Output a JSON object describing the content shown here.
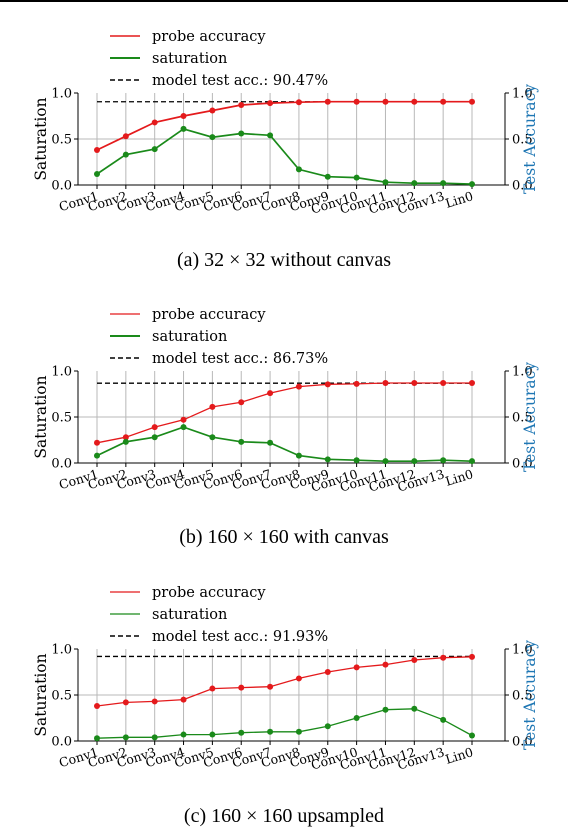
{
  "chart_data": [
    {
      "type": "line",
      "caption": "(a) 32 × 32 without canvas",
      "categories": [
        "Conv1",
        "Conv2",
        "Conv3",
        "Conv4",
        "Conv5",
        "Conv6",
        "Conv7",
        "Conv8",
        "Conv9",
        "Conv10",
        "Conv11",
        "Conv12",
        "Conv13",
        "Lin0"
      ],
      "series": [
        {
          "name": "probe accuracy",
          "color": "#e41a1c",
          "values": [
            0.38,
            0.53,
            0.68,
            0.75,
            0.81,
            0.87,
            0.89,
            0.9,
            0.905,
            0.905,
            0.905,
            0.905,
            0.905,
            0.905
          ]
        },
        {
          "name": "saturation",
          "color": "#1a8a1a",
          "values": [
            0.12,
            0.33,
            0.39,
            0.61,
            0.52,
            0.56,
            0.54,
            0.17,
            0.09,
            0.08,
            0.03,
            0.02,
            0.02,
            0.01
          ]
        }
      ],
      "legend": {
        "probe": "probe accuracy",
        "saturation": "saturation",
        "model": "model test acc.: 90.47%"
      },
      "model_acc": 0.9047,
      "ylabel": "Saturation",
      "y2label": "Test Accuracy",
      "yticks": [
        "0.0",
        "0.5",
        "1.0"
      ],
      "ylim": [
        0,
        1
      ],
      "grid": true,
      "legend_position": "top"
    },
    {
      "type": "line",
      "caption": "(b) 160 × 160 with canvas",
      "categories": [
        "Conv1",
        "Conv2",
        "Conv3",
        "Conv4",
        "Conv5",
        "Conv6",
        "Conv7",
        "Conv8",
        "Conv9",
        "Conv10",
        "Conv11",
        "Conv12",
        "Conv13",
        "Lin0"
      ],
      "series": [
        {
          "name": "probe accuracy",
          "color": "#e41a1c",
          "values": [
            0.22,
            0.28,
            0.39,
            0.47,
            0.61,
            0.66,
            0.76,
            0.83,
            0.855,
            0.86,
            0.87,
            0.87,
            0.87,
            0.87
          ]
        },
        {
          "name": "saturation",
          "color": "#1a8a1a",
          "values": [
            0.08,
            0.23,
            0.28,
            0.39,
            0.28,
            0.23,
            0.22,
            0.08,
            0.04,
            0.03,
            0.02,
            0.02,
            0.03,
            0.02
          ]
        }
      ],
      "legend": {
        "probe": "probe accuracy",
        "saturation": "saturation",
        "model": "model test acc.: 86.73%"
      },
      "model_acc": 0.8673,
      "ylabel": "Saturation",
      "y2label": "Test Accuracy",
      "yticks": [
        "0.0",
        "0.5",
        "1.0"
      ],
      "ylim": [
        0,
        1
      ],
      "grid": true,
      "legend_position": "top"
    },
    {
      "type": "line",
      "caption": "(c) 160 × 160 upsampled",
      "categories": [
        "Conv1",
        "Conv2",
        "Conv3",
        "Conv4",
        "Conv5",
        "Conv6",
        "Conv7",
        "Conv8",
        "Conv9",
        "Conv10",
        "Conv11",
        "Conv12",
        "Conv13",
        "Lin0"
      ],
      "series": [
        {
          "name": "probe accuracy",
          "color": "#e41a1c",
          "values": [
            0.38,
            0.42,
            0.43,
            0.45,
            0.57,
            0.58,
            0.59,
            0.68,
            0.75,
            0.8,
            0.83,
            0.88,
            0.905,
            0.915
          ]
        },
        {
          "name": "saturation",
          "color": "#1a8a1a",
          "values": [
            0.03,
            0.04,
            0.04,
            0.07,
            0.07,
            0.09,
            0.1,
            0.1,
            0.16,
            0.25,
            0.34,
            0.35,
            0.23,
            0.06
          ]
        }
      ],
      "legend": {
        "probe": "probe accuracy",
        "saturation": "saturation",
        "model": "model test acc.: 91.93%"
      },
      "model_acc": 0.9193,
      "ylabel": "Saturation",
      "y2label": "Test Accuracy",
      "yticks": [
        "0.0",
        "0.5",
        "1.0"
      ],
      "ylim": [
        0,
        1
      ],
      "grid": true,
      "legend_position": "top"
    }
  ]
}
